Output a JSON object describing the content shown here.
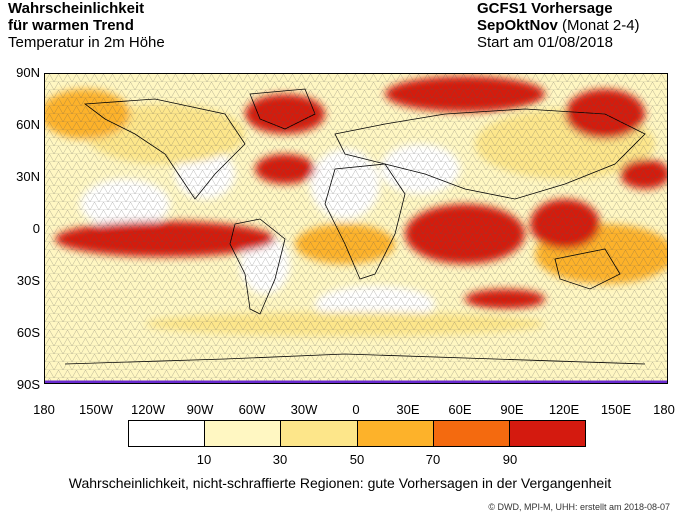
{
  "title": {
    "line1": "Wahrscheinlichkeit",
    "line2": "für warmen Trend",
    "line3": "Temperatur in 2m Höhe"
  },
  "forecast": {
    "model": "GCFS1 Vorhersage",
    "season": "SepOktNov",
    "season_note": " (Monat 2-4)",
    "start": "Start am 01/08/2018"
  },
  "axes": {
    "lat_labels": [
      "90N",
      "60N",
      "30N",
      "0",
      "30S",
      "60S",
      "90S"
    ],
    "lon_labels": [
      "180",
      "150W",
      "120W",
      "90W",
      "60W",
      "30W",
      "0",
      "30E",
      "60E",
      "90E",
      "120E",
      "150E",
      "180"
    ]
  },
  "legend": {
    "colors": [
      "#ffffff",
      "#fff7c2",
      "#fde68a",
      "#fdb22a",
      "#f46a0f",
      "#d41a0f"
    ],
    "ticks": [
      "10",
      "30",
      "50",
      "70",
      "90"
    ]
  },
  "caption": "Wahrscheinlichkeit, nicht-schraffierte Regionen: gute Vorhersagen in der Vergangenheit",
  "credit": "© DWD, MPI-M, UHH: erstellt am 2018-08-07"
}
